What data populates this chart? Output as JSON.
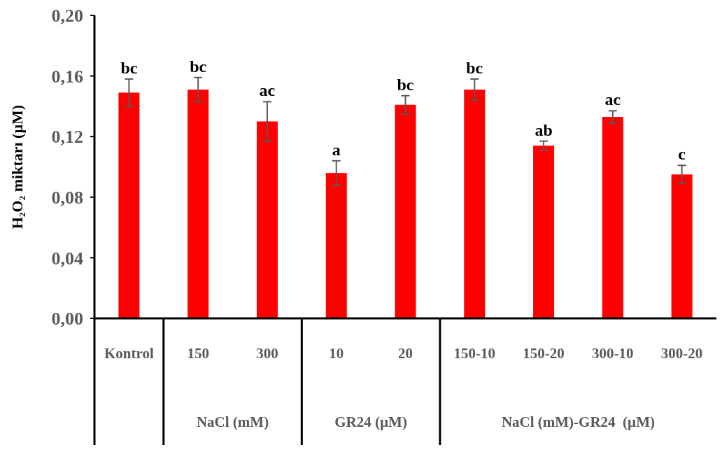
{
  "chart_data": {
    "type": "bar",
    "ylabel": "H₂O₂ miktarı (µM)",
    "categories": [
      "Kontrol",
      "150",
      "300",
      "10",
      "20",
      "150-10",
      "150-20",
      "300-10",
      "300-20"
    ],
    "series": [
      {
        "color": "#ff0000",
        "values": [
          0.149,
          0.151,
          0.13,
          0.096,
          0.141,
          0.151,
          0.114,
          0.133,
          0.095
        ],
        "errors": [
          0.009,
          0.008,
          0.013,
          0.008,
          0.006,
          0.007,
          0.003,
          0.004,
          0.006
        ]
      }
    ],
    "ylim": [
      0,
      0.2
    ],
    "yticks": [
      {
        "value": 0,
        "label": "0,00"
      },
      {
        "value": 0.04,
        "label": "0,04"
      },
      {
        "value": 0.08,
        "label": "0,08"
      },
      {
        "value": 0.12,
        "label": "0,12"
      },
      {
        "value": 0.16,
        "label": "0,16"
      },
      {
        "value": 0.2,
        "label": "0,20"
      }
    ],
    "grid": false,
    "annotations": [
      {
        "text": "bc",
        "x": "Kontrol",
        "y": 0.158
      },
      {
        "text": "bc",
        "x": "150",
        "y": 0.159
      },
      {
        "text": "ac",
        "x": "300",
        "y": 0.143
      },
      {
        "text": "a",
        "x": "10",
        "y": 0.104
      },
      {
        "text": "bc",
        "x": "20",
        "y": 0.147
      },
      {
        "text": "bc",
        "x": "150-10",
        "y": 0.158
      },
      {
        "text": "ab",
        "x": "150-20",
        "y": 0.117
      },
      {
        "text": "ac",
        "x": "300-10",
        "y": 0.137
      },
      {
        "text": "c",
        "x": "300-20",
        "y": 0.101
      },
      "NaCl (mM)",
      "GR24 (µM)",
      "NaCl (mM)-GR24  (µM)"
    ]
  }
}
